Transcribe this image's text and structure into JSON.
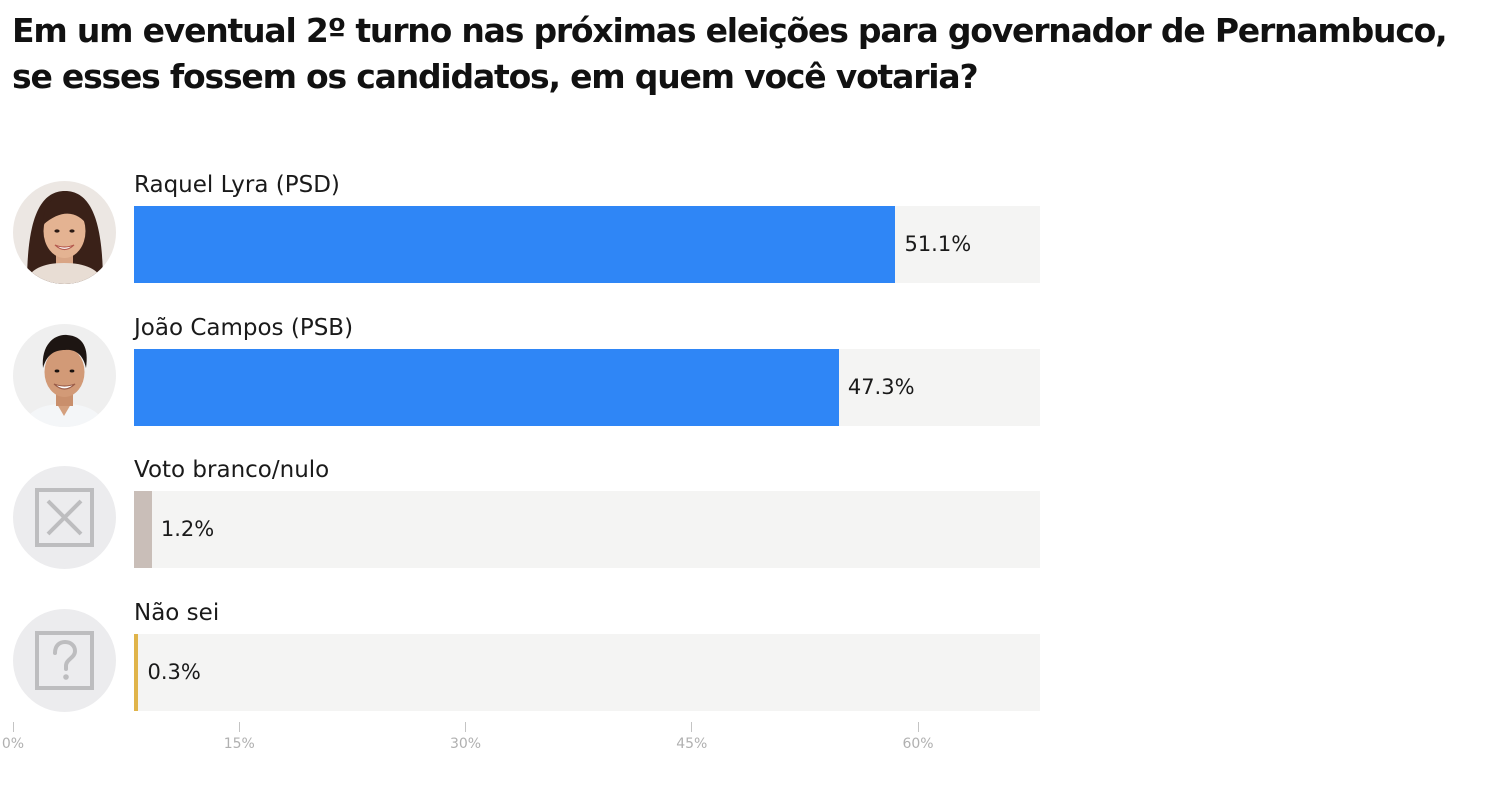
{
  "title": "Em um eventual 2º turno nas próximas eleições para governador de Pernambuco, se esses fossem os candidatos, em quem você votaria?",
  "colors": {
    "raquel": "#2f86f6",
    "joao": "#2f86f6",
    "branco": "#c9beb8",
    "naosei": "#e0b44a",
    "track": "#f4f4f3"
  },
  "chart_data": {
    "type": "bar",
    "orientation": "horizontal",
    "title": "Em um eventual 2º turno nas próximas eleições para governador de Pernambuco, se esses fossem os candidatos, em quem você votaria?",
    "categories": [
      "Raquel Lyra (PSD)",
      "João Campos (PSB)",
      "Voto branco/nulo",
      "Não sei"
    ],
    "values": [
      51.1,
      47.3,
      1.2,
      0.3
    ],
    "value_labels": [
      "51.1%",
      "47.3%",
      "1.2%",
      "0.3%"
    ],
    "icons": [
      "raquel-lyra-photo",
      "joao-campos-photo",
      "x-box-icon",
      "question-box-icon"
    ],
    "xlim": [
      0,
      60
    ],
    "ticks": [
      "0%",
      "15%",
      "30%",
      "45%",
      "60%"
    ],
    "tick_values": [
      0,
      15,
      30,
      45,
      60
    ],
    "grid": false,
    "legend": "none"
  }
}
